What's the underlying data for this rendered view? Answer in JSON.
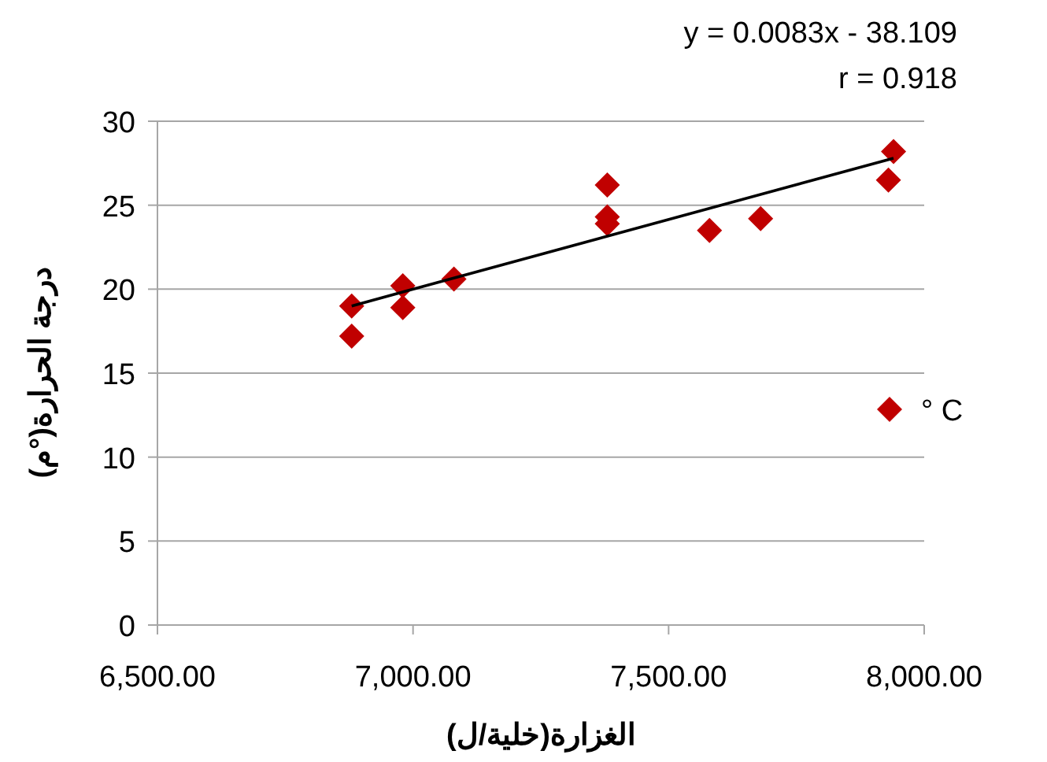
{
  "chart_data": {
    "type": "scatter",
    "xlabel": "الغزارة(خلية/ل)",
    "ylabel": "درجة الحرارة(°م)",
    "annotations": [
      "y = 0.0083x - 38.109",
      "r = 0.918"
    ],
    "series": [
      {
        "name": "° C",
        "type": "scatter",
        "color": "#c00000",
        "marker": "diamond",
        "x": [
          6880,
          6880,
          6980,
          6980,
          7080,
          7380,
          7380,
          7380,
          7580,
          7680,
          7940,
          7930
        ],
        "values": [
          19.0,
          17.2,
          20.2,
          18.9,
          20.6,
          26.2,
          24.3,
          23.9,
          23.5,
          24.2,
          28.2,
          26.5
        ]
      },
      {
        "type": "line",
        "color": "#000000",
        "x": [
          6880,
          7940
        ],
        "values": [
          19.0,
          27.8
        ]
      }
    ],
    "xlim": [
      6500,
      8000
    ],
    "xticks": [
      {
        "value": 6500,
        "label": "6,500.00"
      },
      {
        "value": 7000,
        "label": "7,000.00"
      },
      {
        "value": 7500,
        "label": "7,500.00"
      },
      {
        "value": 8000,
        "label": "8,000.00"
      }
    ],
    "ylim": [
      0,
      30
    ],
    "yticks": [
      0,
      5,
      10,
      15,
      20,
      25,
      30
    ],
    "grid": "y",
    "legend": "right"
  }
}
